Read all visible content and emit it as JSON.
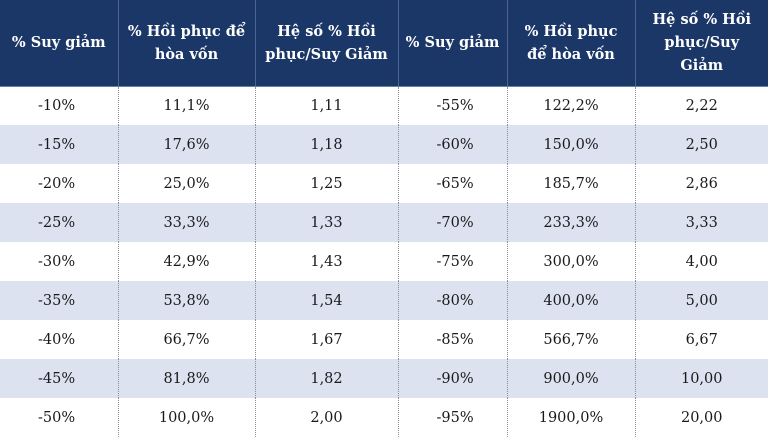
{
  "table": {
    "headers": [
      "% Suy giảm",
      "% Hồi phục để hòa vốn",
      "Hệ số % Hồi phục/Suy Giảm",
      "% Suy giảm",
      "% Hồi phục để hòa vốn",
      "Hệ số % Hồi phục/Suy Giảm"
    ],
    "rows": [
      [
        "-10%",
        "11,1%",
        "1,11",
        "-55%",
        "122,2%",
        "2,22"
      ],
      [
        "-15%",
        "17,6%",
        "1,18",
        "-60%",
        "150,0%",
        "2,50"
      ],
      [
        "-20%",
        "25,0%",
        "1,25",
        "-65%",
        "185,7%",
        "2,86"
      ],
      [
        "-25%",
        "33,3%",
        "1,33",
        "-70%",
        "233,3%",
        "3,33"
      ],
      [
        "-30%",
        "42,9%",
        "1,43",
        "-75%",
        "300,0%",
        "4,00"
      ],
      [
        "-35%",
        "53,8%",
        "1,54",
        "-80%",
        "400,0%",
        "5,00"
      ],
      [
        "-40%",
        "66,7%",
        "1,67",
        "-85%",
        "566,7%",
        "6,67"
      ],
      [
        "-45%",
        "81,8%",
        "1,82",
        "-90%",
        "900,0%",
        "10,00"
      ],
      [
        "-50%",
        "100,0%",
        "2,00",
        "-95%",
        "1900,0%",
        "20,00"
      ]
    ]
  },
  "colors": {
    "header_bg": "#1b3768",
    "header_text": "#ffffff",
    "row_stripe": "#dde2f1"
  }
}
